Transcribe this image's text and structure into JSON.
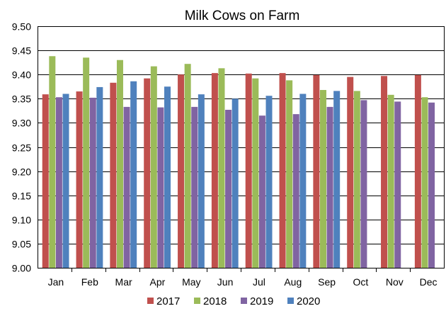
{
  "chart_data": {
    "type": "bar",
    "title": "Milk Cows on Farm",
    "xlabel": "",
    "ylabel": "",
    "ylim": [
      9.0,
      9.5
    ],
    "ytick_step": 0.05,
    "yticks": [
      "9.00",
      "9.05",
      "9.10",
      "9.15",
      "9.20",
      "9.25",
      "9.30",
      "9.35",
      "9.40",
      "9.45",
      "9.50"
    ],
    "grid": "horizontal",
    "legend_position": "bottom",
    "categories": [
      "Jan",
      "Feb",
      "Mar",
      "Apr",
      "May",
      "Jun",
      "Jul",
      "Aug",
      "Sep",
      "Oct",
      "Nov",
      "Dec"
    ],
    "series": [
      {
        "name": "2017",
        "color": "#c0504d",
        "values": [
          9.359,
          9.365,
          9.383,
          9.392,
          9.4,
          9.403,
          9.402,
          9.403,
          9.399,
          9.395,
          9.397,
          9.399
        ]
      },
      {
        "name": "2018",
        "color": "#9bbb59",
        "values": [
          9.438,
          9.435,
          9.43,
          9.417,
          9.422,
          9.413,
          9.392,
          9.388,
          9.368,
          9.366,
          9.358,
          9.353
        ]
      },
      {
        "name": "2019",
        "color": "#8064a2",
        "values": [
          9.353,
          9.352,
          9.333,
          9.332,
          9.333,
          9.327,
          9.315,
          9.318,
          9.333,
          9.347,
          9.344,
          9.342
        ]
      },
      {
        "name": "2020",
        "color": "#4f81bd",
        "values": [
          9.36,
          9.374,
          9.386,
          9.375,
          9.359,
          9.35,
          9.356,
          9.36,
          9.366,
          null,
          null,
          null
        ]
      }
    ]
  }
}
